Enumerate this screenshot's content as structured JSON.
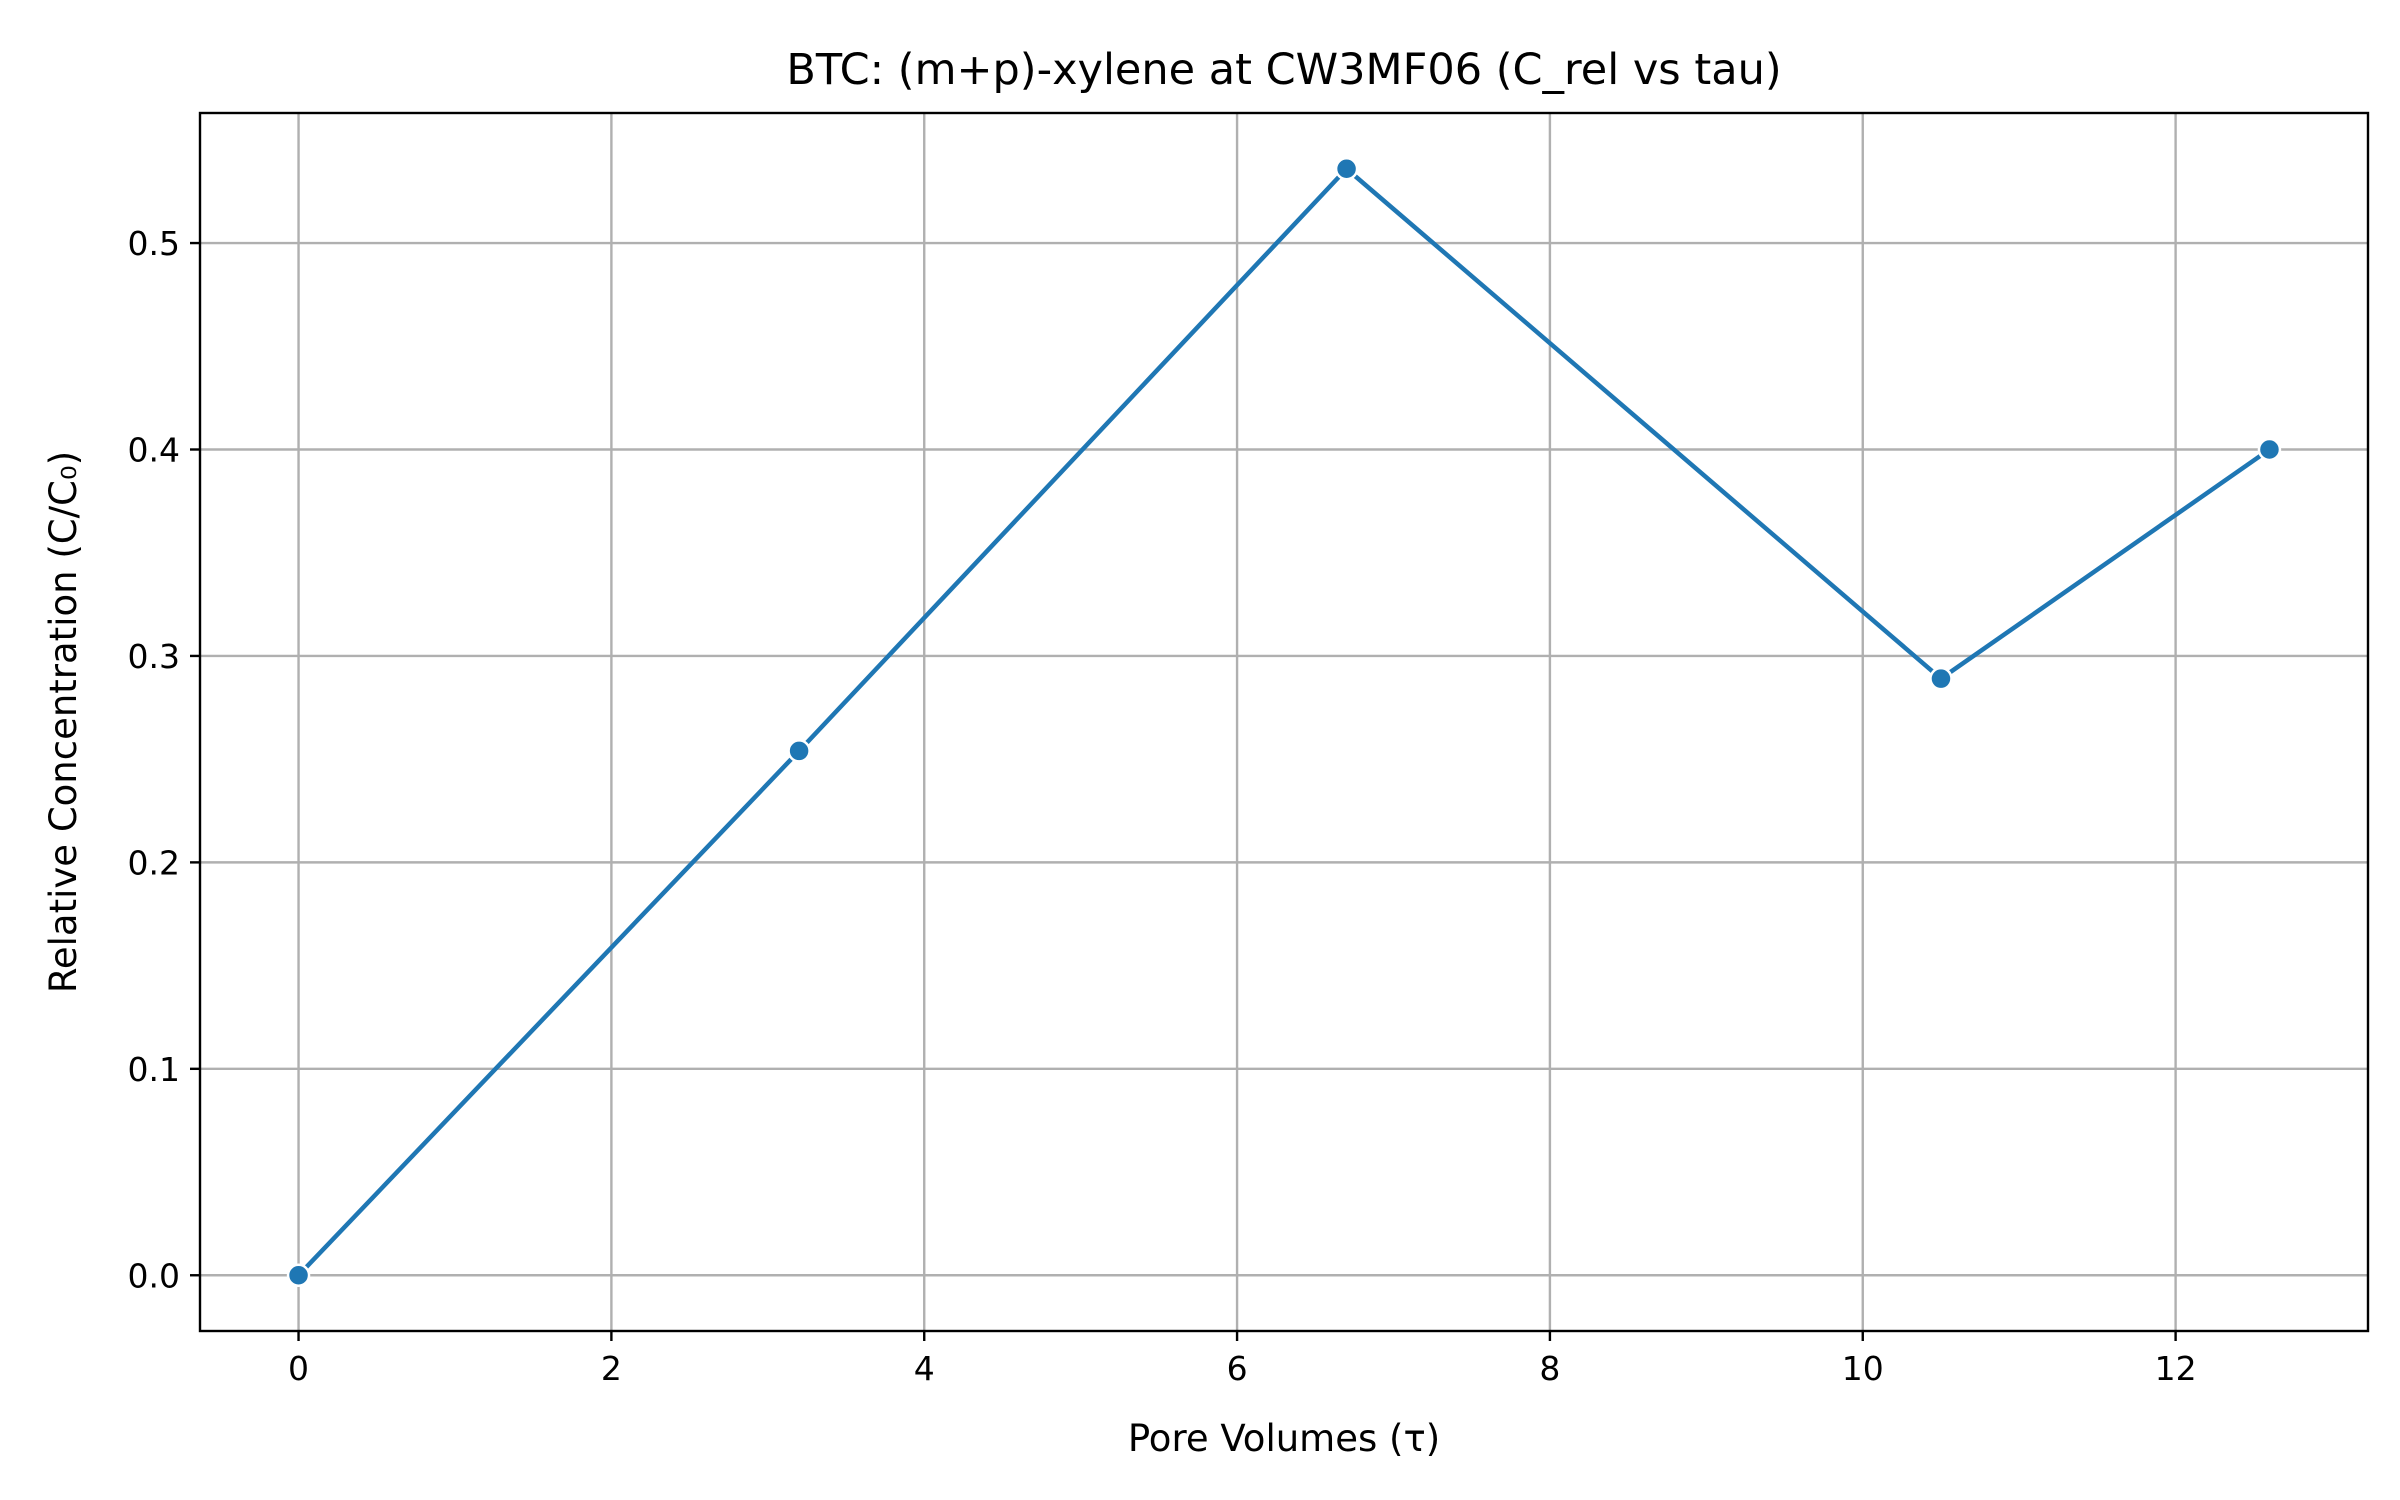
{
  "chart_data": {
    "type": "line",
    "title": "BTC: (m+p)-xylene at CW3MF06 (C_rel vs tau)",
    "xlabel": "Pore Volumes (τ)",
    "ylabel": "Relative Concentration (C/C₀)",
    "xlim": [
      -0.63,
      13.23
    ],
    "ylim": [
      -0.027,
      0.563
    ],
    "x_ticks": [
      0,
      2,
      4,
      6,
      8,
      10,
      12
    ],
    "x_tick_labels": [
      "0",
      "2",
      "4",
      "6",
      "8",
      "10",
      "12"
    ],
    "y_ticks": [
      0.0,
      0.1,
      0.2,
      0.3,
      0.4,
      0.5
    ],
    "y_tick_labels": [
      "0.0",
      "0.1",
      "0.2",
      "0.3",
      "0.4",
      "0.5"
    ],
    "grid": true,
    "series": [
      {
        "x": [
          0,
          3.2,
          6.7,
          10.5,
          12.6
        ],
        "values": [
          0.0,
          0.254,
          0.536,
          0.289,
          0.4
        ],
        "color": "#1f77b4",
        "marker": "circle"
      }
    ]
  }
}
